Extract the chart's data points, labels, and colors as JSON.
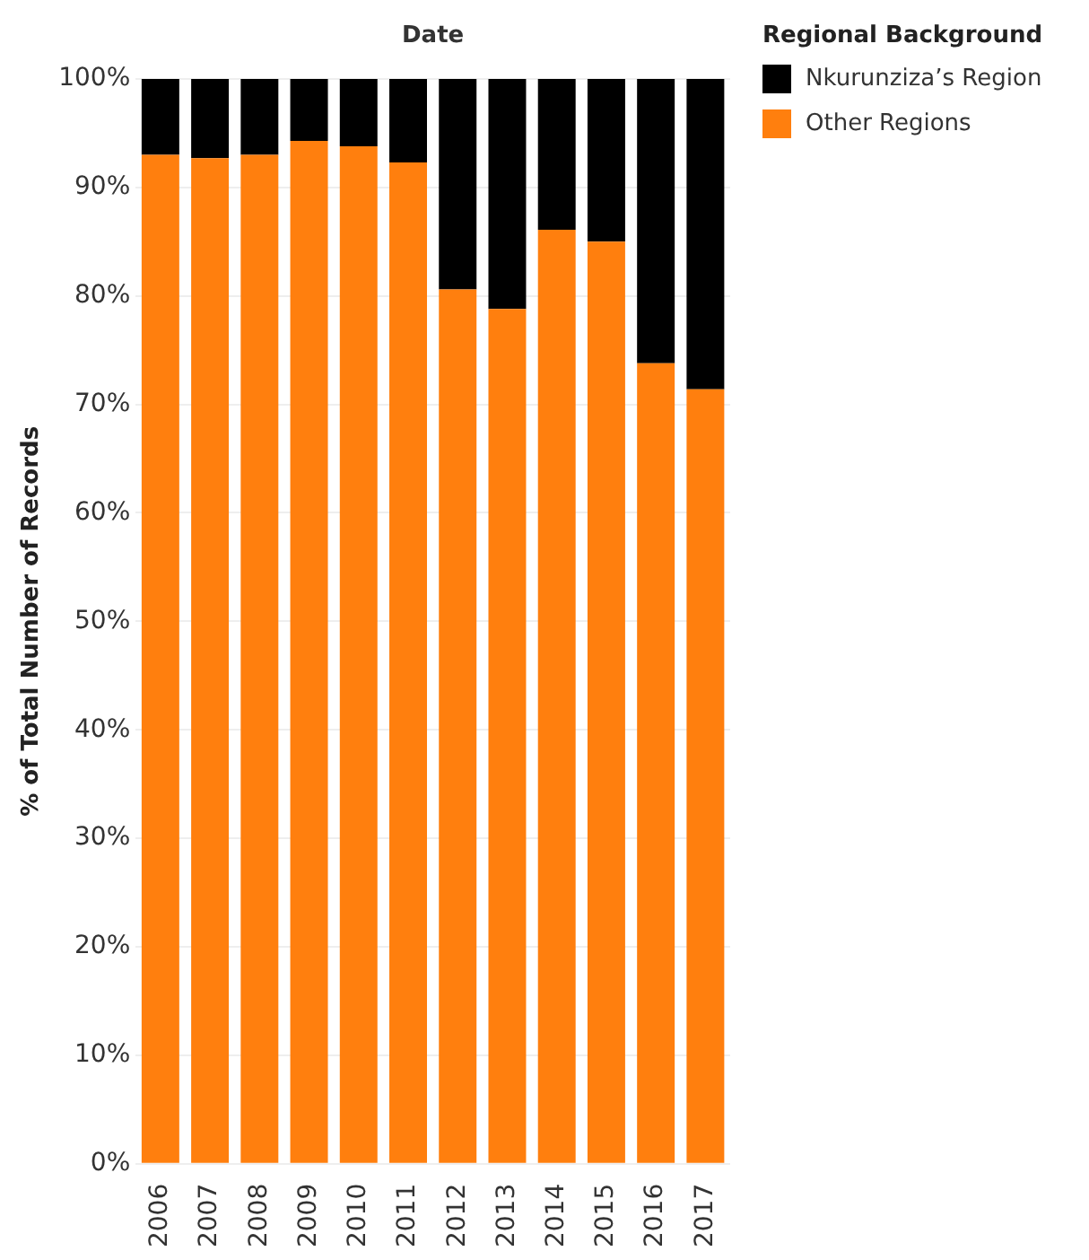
{
  "chart_data": {
    "type": "bar",
    "xlabel": "Date",
    "ylabel": "% of Total Number of Records",
    "legend_title": "Regional Background",
    "categories": [
      "2006",
      "2007",
      "2008",
      "2009",
      "2010",
      "2011",
      "2012",
      "2013",
      "2014",
      "2015",
      "2016",
      "2017"
    ],
    "stacked": true,
    "series": [
      {
        "name": "Other Regions",
        "color": "#ff7f0e",
        "values": [
          93.0,
          92.7,
          93.0,
          94.3,
          93.8,
          92.3,
          80.6,
          78.8,
          86.1,
          85.0,
          73.8,
          71.4
        ]
      },
      {
        "name": "Nkurunziza’s Region",
        "color": "#000000",
        "values": [
          7.0,
          7.3,
          7.0,
          5.7,
          6.2,
          7.7,
          19.4,
          21.2,
          13.9,
          15.0,
          26.2,
          28.6
        ]
      }
    ],
    "ylim": [
      0,
      100
    ],
    "yticks": [
      {
        "value": 0,
        "label": "0%"
      },
      {
        "value": 10,
        "label": "10%"
      },
      {
        "value": 20,
        "label": "20%"
      },
      {
        "value": 30,
        "label": "30%"
      },
      {
        "value": 40,
        "label": "40%"
      },
      {
        "value": 50,
        "label": "50%"
      },
      {
        "value": 60,
        "label": "60%"
      },
      {
        "value": 70,
        "label": "70%"
      },
      {
        "value": 80,
        "label": "80%"
      },
      {
        "value": 90,
        "label": "90%"
      },
      {
        "value": 100,
        "label": "100%"
      }
    ],
    "grid": "y",
    "legend": "top right"
  }
}
